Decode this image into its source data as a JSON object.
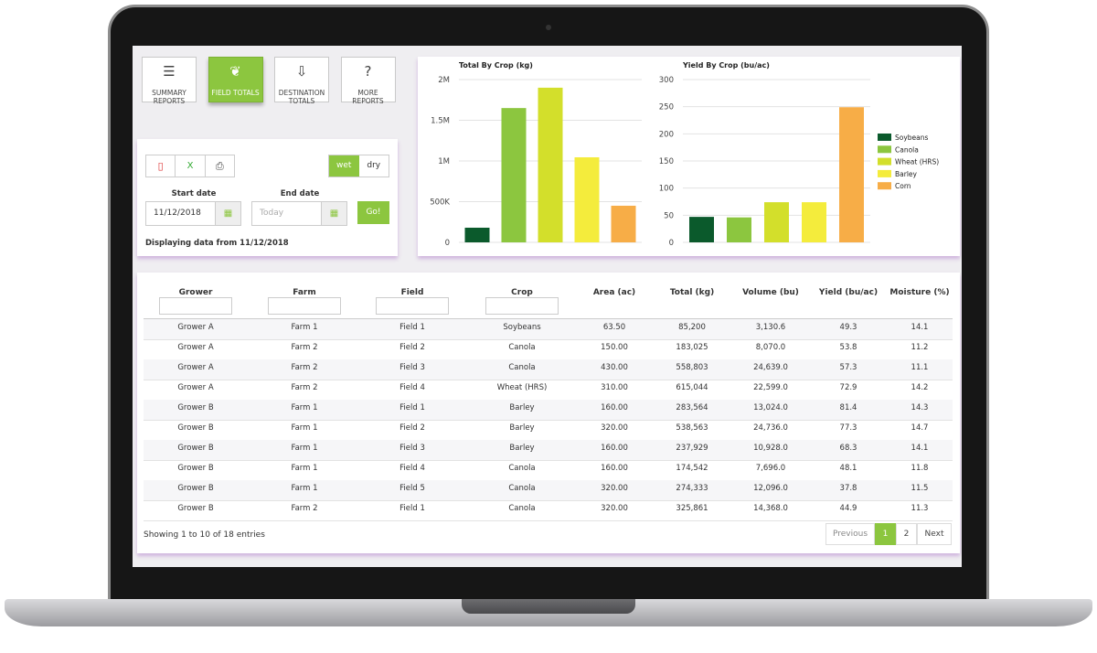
{
  "nav": [
    {
      "label": "SUMMARY REPORTS",
      "active": false
    },
    {
      "label": "FIELD TOTALS",
      "active": true
    },
    {
      "label": "DESTINATION TOTALS",
      "active": false
    },
    {
      "label": "MORE REPORTS",
      "active": false
    }
  ],
  "controls": {
    "toggle": [
      "wet",
      "dry"
    ],
    "toggle_active": 0,
    "start_label": "Start date",
    "start_value": "11/12/2018",
    "end_label": "End date",
    "end_placeholder": "Today",
    "go": "Go!",
    "status": "Displaying data from 11/12/2018"
  },
  "legend": [
    {
      "name": "Soybeans",
      "color": "#0b5a2c"
    },
    {
      "name": "Canola",
      "color": "#8cc63f"
    },
    {
      "name": "Wheat (HRS)",
      "color": "#d3df2b"
    },
    {
      "name": "Barley",
      "color": "#f4ec3c"
    },
    {
      "name": "Corn",
      "color": "#f7ad47"
    }
  ],
  "charts": [
    {
      "type": "bar",
      "title": "Total By Crop (kg)",
      "values": [
        180000,
        1650000,
        1900000,
        1045000,
        450000
      ],
      "ylim": [
        0,
        2000000
      ],
      "yticks": [
        0,
        {
          "value": 500000,
          "label": "500K"
        },
        {
          "value": 1000000,
          "label": "1M"
        },
        {
          "value": 1500000,
          "label": "1.5M"
        },
        {
          "value": 2000000,
          "label": "2M"
        }
      ],
      "grid": true
    },
    {
      "type": "bar",
      "title": "Yield By Crop (bu/ac)",
      "values": [
        47,
        46,
        74,
        74,
        249
      ],
      "ylim": [
        0,
        300
      ],
      "yticks": [
        0,
        50,
        100,
        150,
        200,
        250,
        300
      ],
      "grid": true
    }
  ],
  "table": {
    "columns": [
      "Grower",
      "Farm",
      "Field",
      "Crop",
      "Area (ac)",
      "Total (kg)",
      "Volume (bu)",
      "Yield (bu/ac)",
      "Moisture (%)"
    ],
    "rows": [
      [
        "Grower A",
        "Farm 1",
        "Field 1",
        "Soybeans",
        "63.50",
        "85,200",
        "3,130.6",
        "49.3",
        "14.1"
      ],
      [
        "Grower A",
        "Farm 2",
        "Field 2",
        "Canola",
        "150.00",
        "183,025",
        "8,070.0",
        "53.8",
        "11.2"
      ],
      [
        "Grower A",
        "Farm 2",
        "Field 3",
        "Canola",
        "430.00",
        "558,803",
        "24,639.0",
        "57.3",
        "11.1"
      ],
      [
        "Grower A",
        "Farm 2",
        "Field 4",
        "Wheat (HRS)",
        "310.00",
        "615,044",
        "22,599.0",
        "72.9",
        "14.2"
      ],
      [
        "Grower B",
        "Farm 1",
        "Field 1",
        "Barley",
        "160.00",
        "283,564",
        "13,024.0",
        "81.4",
        "14.3"
      ],
      [
        "Grower B",
        "Farm 1",
        "Field 2",
        "Barley",
        "320.00",
        "538,563",
        "24,736.0",
        "77.3",
        "14.7"
      ],
      [
        "Grower B",
        "Farm 1",
        "Field 3",
        "Barley",
        "160.00",
        "237,929",
        "10,928.0",
        "68.3",
        "14.1"
      ],
      [
        "Grower B",
        "Farm 1",
        "Field 4",
        "Canola",
        "160.00",
        "174,542",
        "7,696.0",
        "48.1",
        "11.8"
      ],
      [
        "Grower B",
        "Farm 1",
        "Field 5",
        "Canola",
        "320.00",
        "274,333",
        "12,096.0",
        "37.8",
        "11.5"
      ],
      [
        "Grower B",
        "Farm 2",
        "Field 1",
        "Canola",
        "320.00",
        "325,861",
        "14,368.0",
        "44.9",
        "11.3"
      ]
    ]
  },
  "footer": {
    "info": "Showing 1 to 10 of 18 entries",
    "pagination": [
      "Previous",
      "1",
      "2",
      "Next"
    ],
    "current": 1
  }
}
